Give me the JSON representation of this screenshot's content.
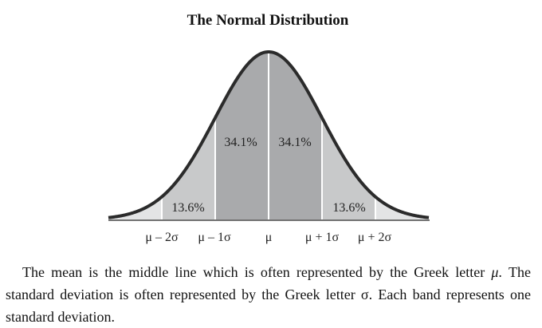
{
  "title": "The Normal Distribution",
  "bands": [
    {
      "label": "13.6%",
      "shade": "#c8c9ca"
    },
    {
      "label": "34.1%",
      "shade": "#a9aaac"
    },
    {
      "label": "34.1%",
      "shade": "#a9aaac"
    },
    {
      "label": "13.6%",
      "shade": "#c8c9ca"
    }
  ],
  "tail_shade": "#e3e4e5",
  "curve_color": "#2b2b2b",
  "x_labels": [
    "μ – 2σ",
    "μ – 1σ",
    "μ",
    "μ + 1σ",
    "μ + 2σ"
  ],
  "caption": {
    "part1": "The mean is the middle line which is often represented by the Greek letter ",
    "mu": "μ",
    "part2": ". The standard deviation is often represented by the Greek letter σ. Each band represents one standard deviation."
  }
}
